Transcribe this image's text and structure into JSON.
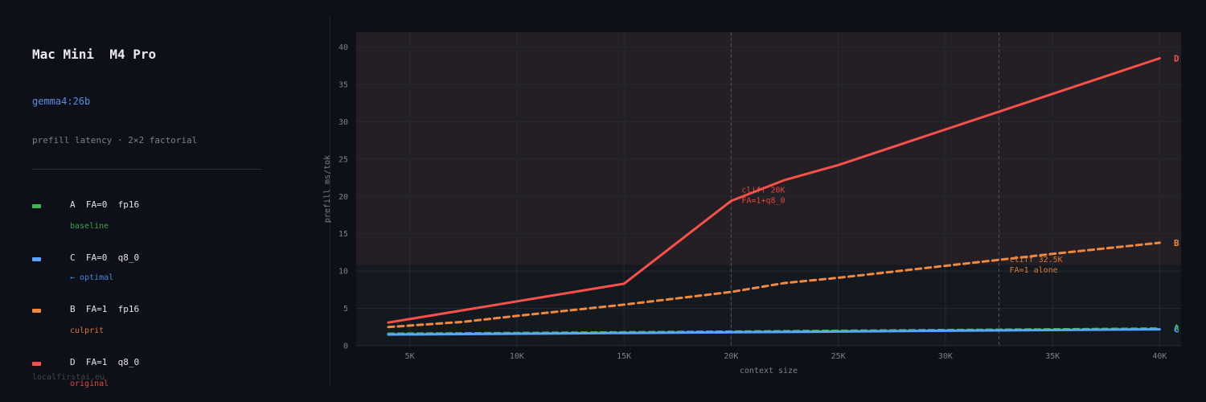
{
  "panel": {
    "title": "Mac Mini  M4 Pro",
    "model": "gemma4:26b",
    "subtitle": "prefill latency · 2×2 factorial",
    "footer": "localfirstai.eu",
    "legend": [
      {
        "label": "A  FA=0  fp16",
        "note": "baseline",
        "color": "#3fb950",
        "note_color": "#3fa24a"
      },
      {
        "label": "C  FA=0  q8_0",
        "note": "← optimal",
        "color": "#58a6ff",
        "note_color": "#4a86d8"
      },
      {
        "label": "B  FA=1  fp16",
        "note": "culprit",
        "color": "#f0883e",
        "note_color": "#d97a36"
      },
      {
        "label": "D  FA=1  q8_0",
        "note": "original",
        "color": "#f85149",
        "note_color": "#e0473f"
      }
    ]
  },
  "colors": {
    "background": "#0d1018",
    "plot_upper": "#241f25",
    "plot_lower": "#141920",
    "grid": "#252a33",
    "cliff_line": "#6b4a45"
  },
  "chart_data": {
    "type": "line",
    "xlabel": "context size",
    "ylabel": "prefill  ms/tok",
    "xlim": [
      2500,
      41000
    ],
    "ylim": [
      0,
      42
    ],
    "xticks": [
      5000,
      10000,
      15000,
      20000,
      25000,
      30000,
      35000,
      40000
    ],
    "xtick_labels": [
      "5K",
      "10K",
      "15K",
      "20K",
      "25K",
      "30K",
      "35K",
      "40K"
    ],
    "yticks": [
      0,
      5,
      10,
      15,
      20,
      25,
      30,
      35,
      40
    ],
    "ytick_labels": [
      "0",
      "5",
      "10",
      "15",
      "20",
      "25",
      "30",
      "35",
      "40"
    ],
    "shaded_region_above_y": 10.8,
    "grid": true,
    "series": [
      {
        "name": "D",
        "color": "#f85149",
        "dash": false,
        "x": [
          4000,
          15000,
          20000,
          22500,
          25000,
          40000
        ],
        "y": [
          3.1,
          8.3,
          19.4,
          22.2,
          24.2,
          38.5
        ]
      },
      {
        "name": "B",
        "color": "#f0883e",
        "dash": true,
        "x": [
          4000,
          7500,
          10000,
          15000,
          20000,
          22500,
          25000,
          30000,
          35000,
          40000
        ],
        "y": [
          2.5,
          3.2,
          4.0,
          5.5,
          7.2,
          8.4,
          9.1,
          10.7,
          12.3,
          13.8
        ]
      },
      {
        "name": "A",
        "color": "#3fb950",
        "dash": true,
        "x": [
          4000,
          10000,
          15000,
          20000,
          25000,
          30000,
          35000,
          40000
        ],
        "y": [
          1.6,
          1.7,
          1.8,
          1.9,
          2.0,
          2.1,
          2.2,
          2.3
        ]
      },
      {
        "name": "C",
        "color": "#58a6ff",
        "dash": false,
        "x": [
          4000,
          10000,
          15000,
          20000,
          25000,
          30000,
          35000,
          40000
        ],
        "y": [
          1.5,
          1.6,
          1.7,
          1.8,
          1.9,
          2.0,
          2.1,
          2.2
        ]
      }
    ],
    "cliffs": [
      {
        "x": 20000,
        "line1": "cliff  20K",
        "line2": "FA=1+q8_0",
        "color": "#e0473f",
        "label_y": 20.5
      },
      {
        "x": 32500,
        "line1": "cliff  32.5K",
        "line2": "FA=1 alone",
        "color": "#d97a36",
        "label_y": 11.2
      }
    ],
    "end_labels": [
      {
        "text": "D",
        "color": "#f85149",
        "y": 38.5
      },
      {
        "text": "B",
        "color": "#f0883e",
        "y": 13.8
      },
      {
        "text": "A",
        "color": "#3fb950",
        "y": 2.4
      },
      {
        "text": "C",
        "color": "#58a6ff",
        "y": 2.2
      }
    ]
  }
}
